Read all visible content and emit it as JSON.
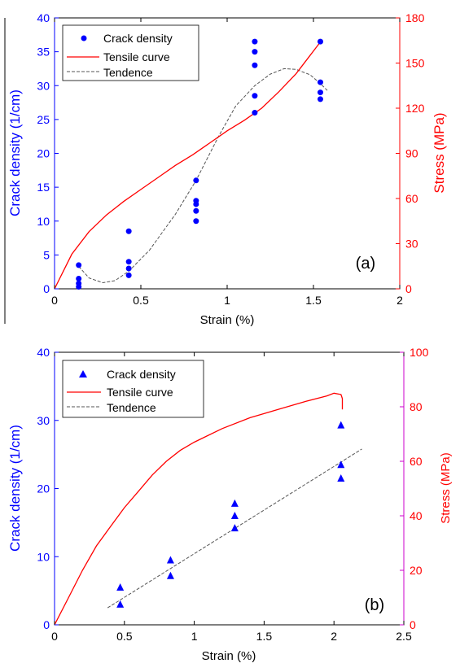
{
  "chart_data": [
    {
      "type": "scatter",
      "panel_label": "(a)",
      "xlabel": "Strain (%)",
      "ylabel": "Crack density (1/cm)",
      "y2label": "Stress (MPa)",
      "xlim": [
        0,
        2
      ],
      "ylim": [
        0,
        40
      ],
      "y2lim": [
        0,
        180
      ],
      "xticks": [
        "0",
        "0.5",
        "1",
        "1.5",
        "2"
      ],
      "yticks": [
        "0",
        "5",
        "10",
        "15",
        "20",
        "25",
        "30",
        "35",
        "40"
      ],
      "y2ticks": [
        "0",
        "30",
        "60",
        "90",
        "120",
        "150",
        "180"
      ],
      "legend": [
        "Crack density",
        "Tensile curve",
        "Tendence"
      ],
      "legend_position": "top-left",
      "colors": {
        "left_axis": "#0000ff",
        "right_axis": "#ff0000",
        "tensile": "#ff0000",
        "tendence": "#555555",
        "points": "#0000ff"
      },
      "series": [
        {
          "name": "Crack density",
          "marker": "circle",
          "axis": "left",
          "points": [
            [
              0.14,
              0.3
            ],
            [
              0.14,
              0.8
            ],
            [
              0.14,
              1.5
            ],
            [
              0.14,
              3.5
            ],
            [
              0.43,
              2.0
            ],
            [
              0.43,
              3.0
            ],
            [
              0.43,
              4.0
            ],
            [
              0.43,
              8.5
            ],
            [
              0.82,
              10.0
            ],
            [
              0.82,
              11.5
            ],
            [
              0.82,
              12.5
            ],
            [
              0.82,
              13.0
            ],
            [
              0.82,
              16.0
            ],
            [
              1.16,
              26.0
            ],
            [
              1.16,
              28.5
            ],
            [
              1.16,
              33.0
            ],
            [
              1.16,
              35.0
            ],
            [
              1.16,
              36.5
            ],
            [
              1.54,
              28.0
            ],
            [
              1.54,
              29.0
            ],
            [
              1.54,
              30.5
            ],
            [
              1.54,
              36.5
            ]
          ]
        },
        {
          "name": "Tensile curve",
          "axis": "right",
          "points": [
            [
              0,
              0
            ],
            [
              0.1,
              23
            ],
            [
              0.2,
              38
            ],
            [
              0.3,
              49
            ],
            [
              0.4,
              58
            ],
            [
              0.5,
              66
            ],
            [
              0.6,
              74
            ],
            [
              0.7,
              82
            ],
            [
              0.8,
              89
            ],
            [
              0.9,
              97
            ],
            [
              1.0,
              105
            ],
            [
              1.1,
              112
            ],
            [
              1.2,
              120
            ],
            [
              1.3,
              131
            ],
            [
              1.4,
              143
            ],
            [
              1.54,
              164
            ]
          ]
        },
        {
          "name": "Tendence",
          "axis": "left",
          "points": [
            [
              0.14,
              3.3
            ],
            [
              0.2,
              1.6
            ],
            [
              0.28,
              0.9
            ],
            [
              0.35,
              1.2
            ],
            [
              0.43,
              2.6
            ],
            [
              0.55,
              5.7
            ],
            [
              0.7,
              11.0
            ],
            [
              0.82,
              16.0
            ],
            [
              0.95,
              22.5
            ],
            [
              1.05,
              27.0
            ],
            [
              1.16,
              30.0
            ],
            [
              1.25,
              31.7
            ],
            [
              1.33,
              32.5
            ],
            [
              1.4,
              32.4
            ],
            [
              1.48,
              31.6
            ],
            [
              1.54,
              30.3
            ],
            [
              1.58,
              29.3
            ]
          ]
        }
      ]
    },
    {
      "type": "scatter",
      "panel_label": "(b)",
      "xlabel": "Strain (%)",
      "ylabel": "Crack density (1/cm)",
      "y2label": "Stress (MPa)",
      "xlim": [
        0,
        2.5
      ],
      "ylim": [
        0,
        40
      ],
      "y2lim": [
        0,
        100
      ],
      "xticks": [
        "0",
        "0.5",
        "1",
        "1.5",
        "2",
        "2.5"
      ],
      "yticks": [
        "0",
        "10",
        "20",
        "30",
        "40"
      ],
      "y2ticks": [
        "0",
        "20",
        "40",
        "60",
        "80",
        "100"
      ],
      "legend": [
        "Crack density",
        "Tensile curve",
        "Tendence"
      ],
      "legend_position": "top-left",
      "colors": {
        "left_axis": "#0000ff",
        "right_axis": "#ff0000",
        "right_axis_line": "#cc00cc",
        "tensile": "#ff0000",
        "tendence": "#555555",
        "points": "#0000ff"
      },
      "series": [
        {
          "name": "Crack density",
          "marker": "triangle",
          "axis": "left",
          "points": [
            [
              0.47,
              3.0
            ],
            [
              0.47,
              5.5
            ],
            [
              0.83,
              7.2
            ],
            [
              0.83,
              9.5
            ],
            [
              1.29,
              14.2
            ],
            [
              1.29,
              16.0
            ],
            [
              1.29,
              17.8
            ],
            [
              2.05,
              21.5
            ],
            [
              2.05,
              23.5
            ],
            [
              2.05,
              29.3
            ]
          ]
        },
        {
          "name": "Tensile curve",
          "axis": "right",
          "points": [
            [
              0,
              0
            ],
            [
              0.1,
              10
            ],
            [
              0.2,
              20
            ],
            [
              0.3,
              29
            ],
            [
              0.4,
              36
            ],
            [
              0.5,
              43
            ],
            [
              0.6,
              49
            ],
            [
              0.7,
              55
            ],
            [
              0.8,
              60
            ],
            [
              0.9,
              64
            ],
            [
              1.0,
              67
            ],
            [
              1.2,
              72
            ],
            [
              1.4,
              76
            ],
            [
              1.6,
              79
            ],
            [
              1.8,
              82
            ],
            [
              1.95,
              84
            ],
            [
              2.0,
              85
            ],
            [
              2.05,
              84.5
            ],
            [
              2.06,
              83
            ],
            [
              2.06,
              79
            ]
          ]
        },
        {
          "name": "Tendence",
          "axis": "left",
          "points": [
            [
              0.38,
              2.5
            ],
            [
              2.2,
              25.8
            ]
          ]
        }
      ]
    }
  ]
}
